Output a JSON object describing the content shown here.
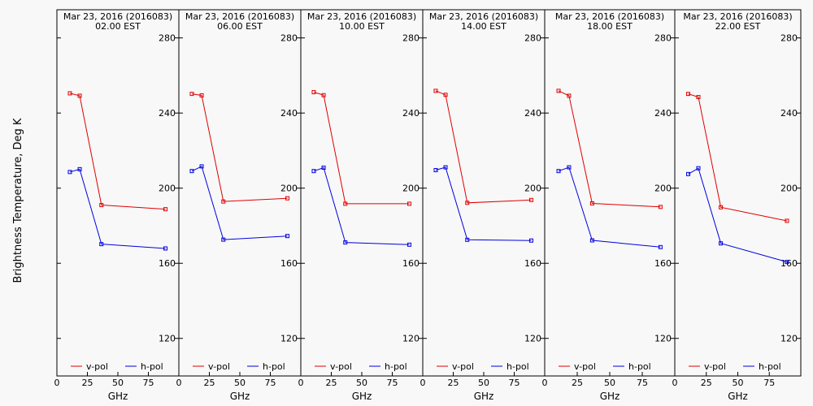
{
  "ylabel": "Brightness Temperature, Deg K",
  "colors": {
    "v-pol": "#e00000",
    "h-pol": "#0000e0",
    "axis": "#000000"
  },
  "chart_data": [
    {
      "type": "line",
      "title": [
        "Mar 23, 2016 (2016083)",
        "02.00 EST"
      ],
      "xlabel": "GHz",
      "xlim": [
        0,
        100
      ],
      "ylim": [
        100,
        295
      ],
      "xticks": [
        0,
        25,
        50,
        75
      ],
      "yticks": [
        120,
        160,
        200,
        240,
        280
      ],
      "x": [
        10.65,
        18.7,
        36.5,
        89.0
      ],
      "series": [
        {
          "name": "v-pol",
          "values": [
            250.5,
            249.2,
            191.0,
            188.8
          ]
        },
        {
          "name": "h-pol",
          "values": [
            208.6,
            210.1,
            170.2,
            167.9
          ]
        }
      ]
    },
    {
      "type": "line",
      "title": [
        "Mar 23, 2016 (2016083)",
        "06.00 EST"
      ],
      "xlabel": "GHz",
      "xlim": [
        0,
        100
      ],
      "ylim": [
        100,
        295
      ],
      "xticks": [
        0,
        25,
        50,
        75
      ],
      "yticks": [
        120,
        160,
        200,
        240,
        280
      ],
      "x": [
        10.65,
        18.7,
        36.5,
        89.0
      ],
      "series": [
        {
          "name": "v-pol",
          "values": [
            250.2,
            249.4,
            192.9,
            194.6
          ]
        },
        {
          "name": "h-pol",
          "values": [
            209.1,
            211.6,
            172.6,
            174.5
          ]
        }
      ]
    },
    {
      "type": "line",
      "title": [
        "Mar 23, 2016 (2016083)",
        "10.00 EST"
      ],
      "xlabel": "GHz",
      "xlim": [
        0,
        100
      ],
      "ylim": [
        100,
        295
      ],
      "xticks": [
        0,
        25,
        50,
        75
      ],
      "yticks": [
        120,
        160,
        200,
        240,
        280
      ],
      "x": [
        10.65,
        18.7,
        36.5,
        89.0
      ],
      "series": [
        {
          "name": "v-pol",
          "values": [
            251.1,
            249.5,
            191.7,
            191.7
          ]
        },
        {
          "name": "h-pol",
          "values": [
            209.1,
            210.9,
            171.1,
            169.9
          ]
        }
      ]
    },
    {
      "type": "line",
      "title": [
        "Mar 23, 2016 (2016083)",
        "14.00 EST"
      ],
      "xlabel": "GHz",
      "xlim": [
        0,
        100
      ],
      "ylim": [
        100,
        295
      ],
      "xticks": [
        0,
        25,
        50,
        75
      ],
      "yticks": [
        120,
        160,
        200,
        240,
        280
      ],
      "x": [
        10.65,
        18.7,
        36.5,
        89.0
      ],
      "series": [
        {
          "name": "v-pol",
          "values": [
            251.8,
            249.7,
            192.2,
            193.7
          ]
        },
        {
          "name": "h-pol",
          "values": [
            209.6,
            211.1,
            172.5,
            172.1
          ]
        }
      ]
    },
    {
      "type": "line",
      "title": [
        "Mar 23, 2016 (2016083)",
        "18.00 EST"
      ],
      "xlabel": "GHz",
      "xlim": [
        0,
        100
      ],
      "ylim": [
        100,
        295
      ],
      "xticks": [
        0,
        25,
        50,
        75
      ],
      "yticks": [
        120,
        160,
        200,
        240,
        280
      ],
      "x": [
        10.65,
        18.7,
        36.5,
        89.0
      ],
      "series": [
        {
          "name": "v-pol",
          "values": [
            251.8,
            249.2,
            191.9,
            190.0
          ]
        },
        {
          "name": "h-pol",
          "values": [
            209.1,
            211.1,
            172.2,
            168.6
          ]
        }
      ]
    },
    {
      "type": "line",
      "title": [
        "Mar 23, 2016 (2016083)",
        "22.00 EST"
      ],
      "xlabel": "GHz",
      "xlim": [
        0,
        100
      ],
      "ylim": [
        100,
        295
      ],
      "xticks": [
        0,
        25,
        50,
        75
      ],
      "yticks": [
        120,
        160,
        200,
        240,
        280
      ],
      "x": [
        10.65,
        18.7,
        36.5,
        89.0
      ],
      "series": [
        {
          "name": "v-pol",
          "values": [
            250.2,
            248.5,
            189.8,
            182.6
          ]
        },
        {
          "name": "h-pol",
          "values": [
            207.5,
            210.6,
            170.6,
            160.7
          ]
        }
      ]
    }
  ]
}
